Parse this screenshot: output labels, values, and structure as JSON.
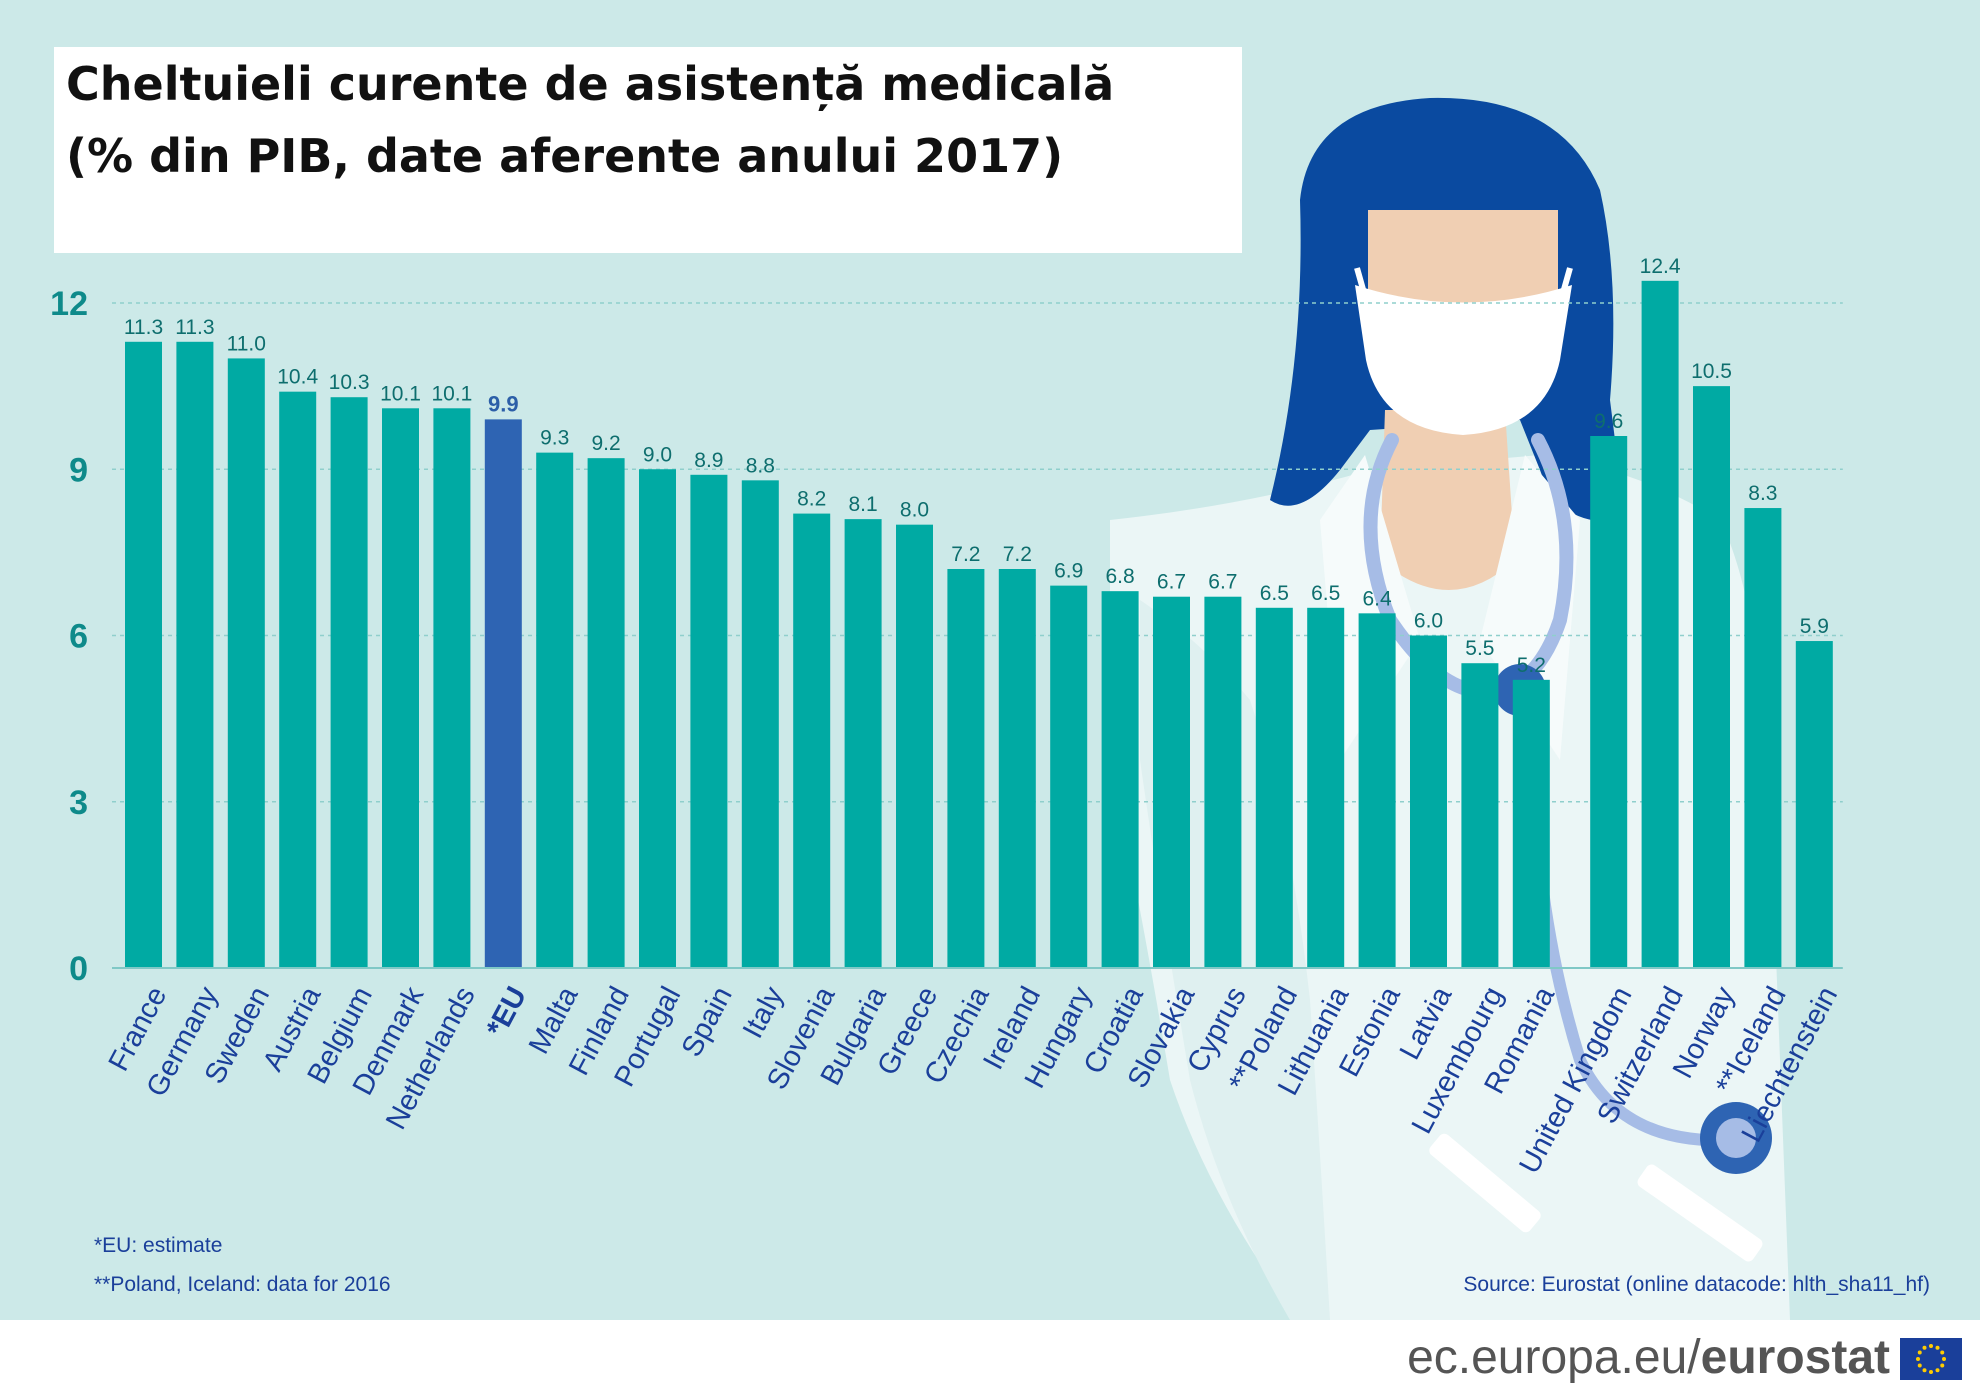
{
  "title_line1": "Cheltuieli curente de asistență medicală",
  "title_line2": "(% din PIB, date aferente anului 2017)",
  "footnotes": {
    "eu": "*EU: estimate",
    "poland_iceland": "**Poland, Iceland: data for 2016",
    "source": "Source:  Eurostat (online datacode: hlth_sha11_hf)"
  },
  "branding": {
    "domain": "ec.europa.eu/",
    "brand": "eurostat",
    "flag_icon": "eu-flag-icon"
  },
  "colors": {
    "bar": "#00aaa3",
    "highlight": "#2e64b3",
    "background": "#cce9e8",
    "hair": "#0a4aa0",
    "skin": "#f0cfb3"
  },
  "chart_data": {
    "type": "bar",
    "title": "Cheltuieli curente de asistență medicală (% din PIB, date aferente anului 2017)",
    "xlabel": "",
    "ylabel": "",
    "ylim": [
      0,
      12
    ],
    "yticks": [
      0,
      3,
      6,
      9,
      12
    ],
    "grid": true,
    "highlight_category": "*EU",
    "categories": [
      "France",
      "Germany",
      "Sweden",
      "Austria",
      "Belgium",
      "Denmark",
      "Netherlands",
      "*EU",
      "Malta",
      "Finland",
      "Portugal",
      "Spain",
      "Italy",
      "Slovenia",
      "Bulgaria",
      "Greece",
      "Czechia",
      "Ireland",
      "Hungary",
      "Croatia",
      "Slovakia",
      "Cyprus",
      "**Poland",
      "Lithuania",
      "Estonia",
      "Latvia",
      "Luxembourg",
      "Romania",
      "United Kingdom",
      "Switzerland",
      "Norway",
      "**Iceland",
      "Liechtenstein"
    ],
    "values": [
      11.3,
      11.3,
      11.0,
      10.4,
      10.3,
      10.1,
      10.1,
      9.9,
      9.3,
      9.2,
      9.0,
      8.9,
      8.8,
      8.2,
      8.1,
      8.0,
      7.2,
      7.2,
      6.9,
      6.8,
      6.7,
      6.7,
      6.5,
      6.5,
      6.4,
      6.0,
      5.5,
      5.2,
      9.6,
      12.4,
      10.5,
      8.3,
      5.9
    ],
    "value_labels": [
      "11.3",
      "11.3",
      "11.0",
      "10.4",
      "10.3",
      "10.1",
      "10.1",
      "9.9",
      "9.3",
      "9.2",
      "9.0",
      "8.9",
      "8.8",
      "8.2",
      "8.1",
      "8.0",
      "7.2",
      "7.2",
      "6.9",
      "6.8",
      "6.7",
      "6.7",
      "6.5",
      "6.5",
      "6.4",
      "6.0",
      "5.5",
      "5.2",
      "9.6",
      "12.4",
      "10.5",
      "8.3",
      "5.9"
    ]
  }
}
